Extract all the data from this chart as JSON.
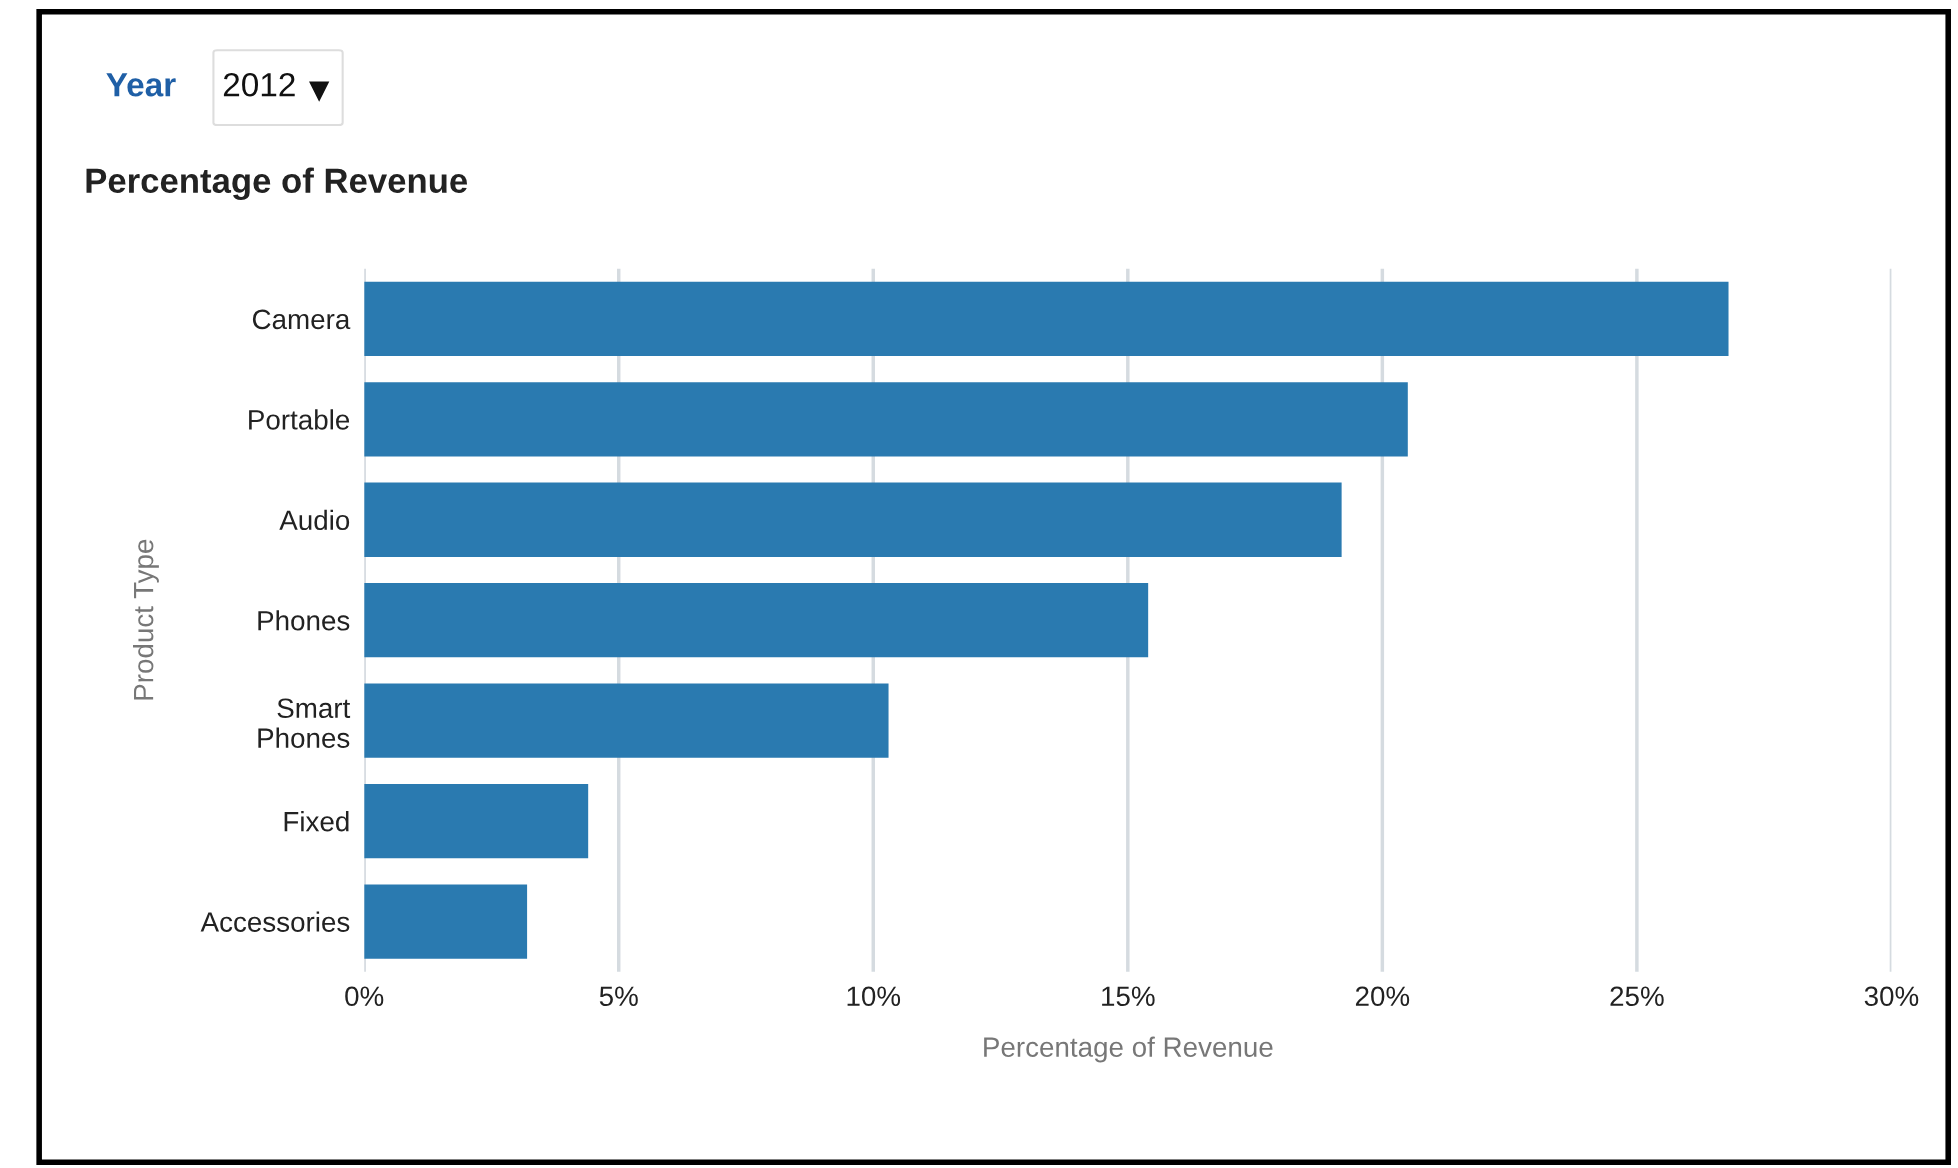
{
  "chart_data": {
    "type": "bar",
    "orientation": "horizontal",
    "title": "Percentage of Revenue",
    "annotations": [
      "Year",
      "2012"
    ],
    "categories": [
      "Camera",
      "Portable",
      "Audio",
      "Phones",
      "Smart\nPhones",
      "Fixed",
      "Accessories"
    ],
    "values": [
      26.8,
      20.5,
      19.2,
      15.4,
      10.3,
      4.4,
      3.2
    ],
    "color": "#2a7ab0",
    "xlabel": "Percentage of Revenue",
    "ylabel": "Product Type",
    "xlim": [
      0,
      30
    ],
    "xticks": [
      {
        "value": 0,
        "label": "0%"
      },
      {
        "value": 5,
        "label": "5%"
      },
      {
        "value": 10,
        "label": "10%"
      },
      {
        "value": 15,
        "label": "15%"
      },
      {
        "value": 20,
        "label": "20%"
      },
      {
        "value": 25,
        "label": "25%"
      },
      {
        "value": 30,
        "label": "30%"
      }
    ],
    "grid": "x"
  }
}
